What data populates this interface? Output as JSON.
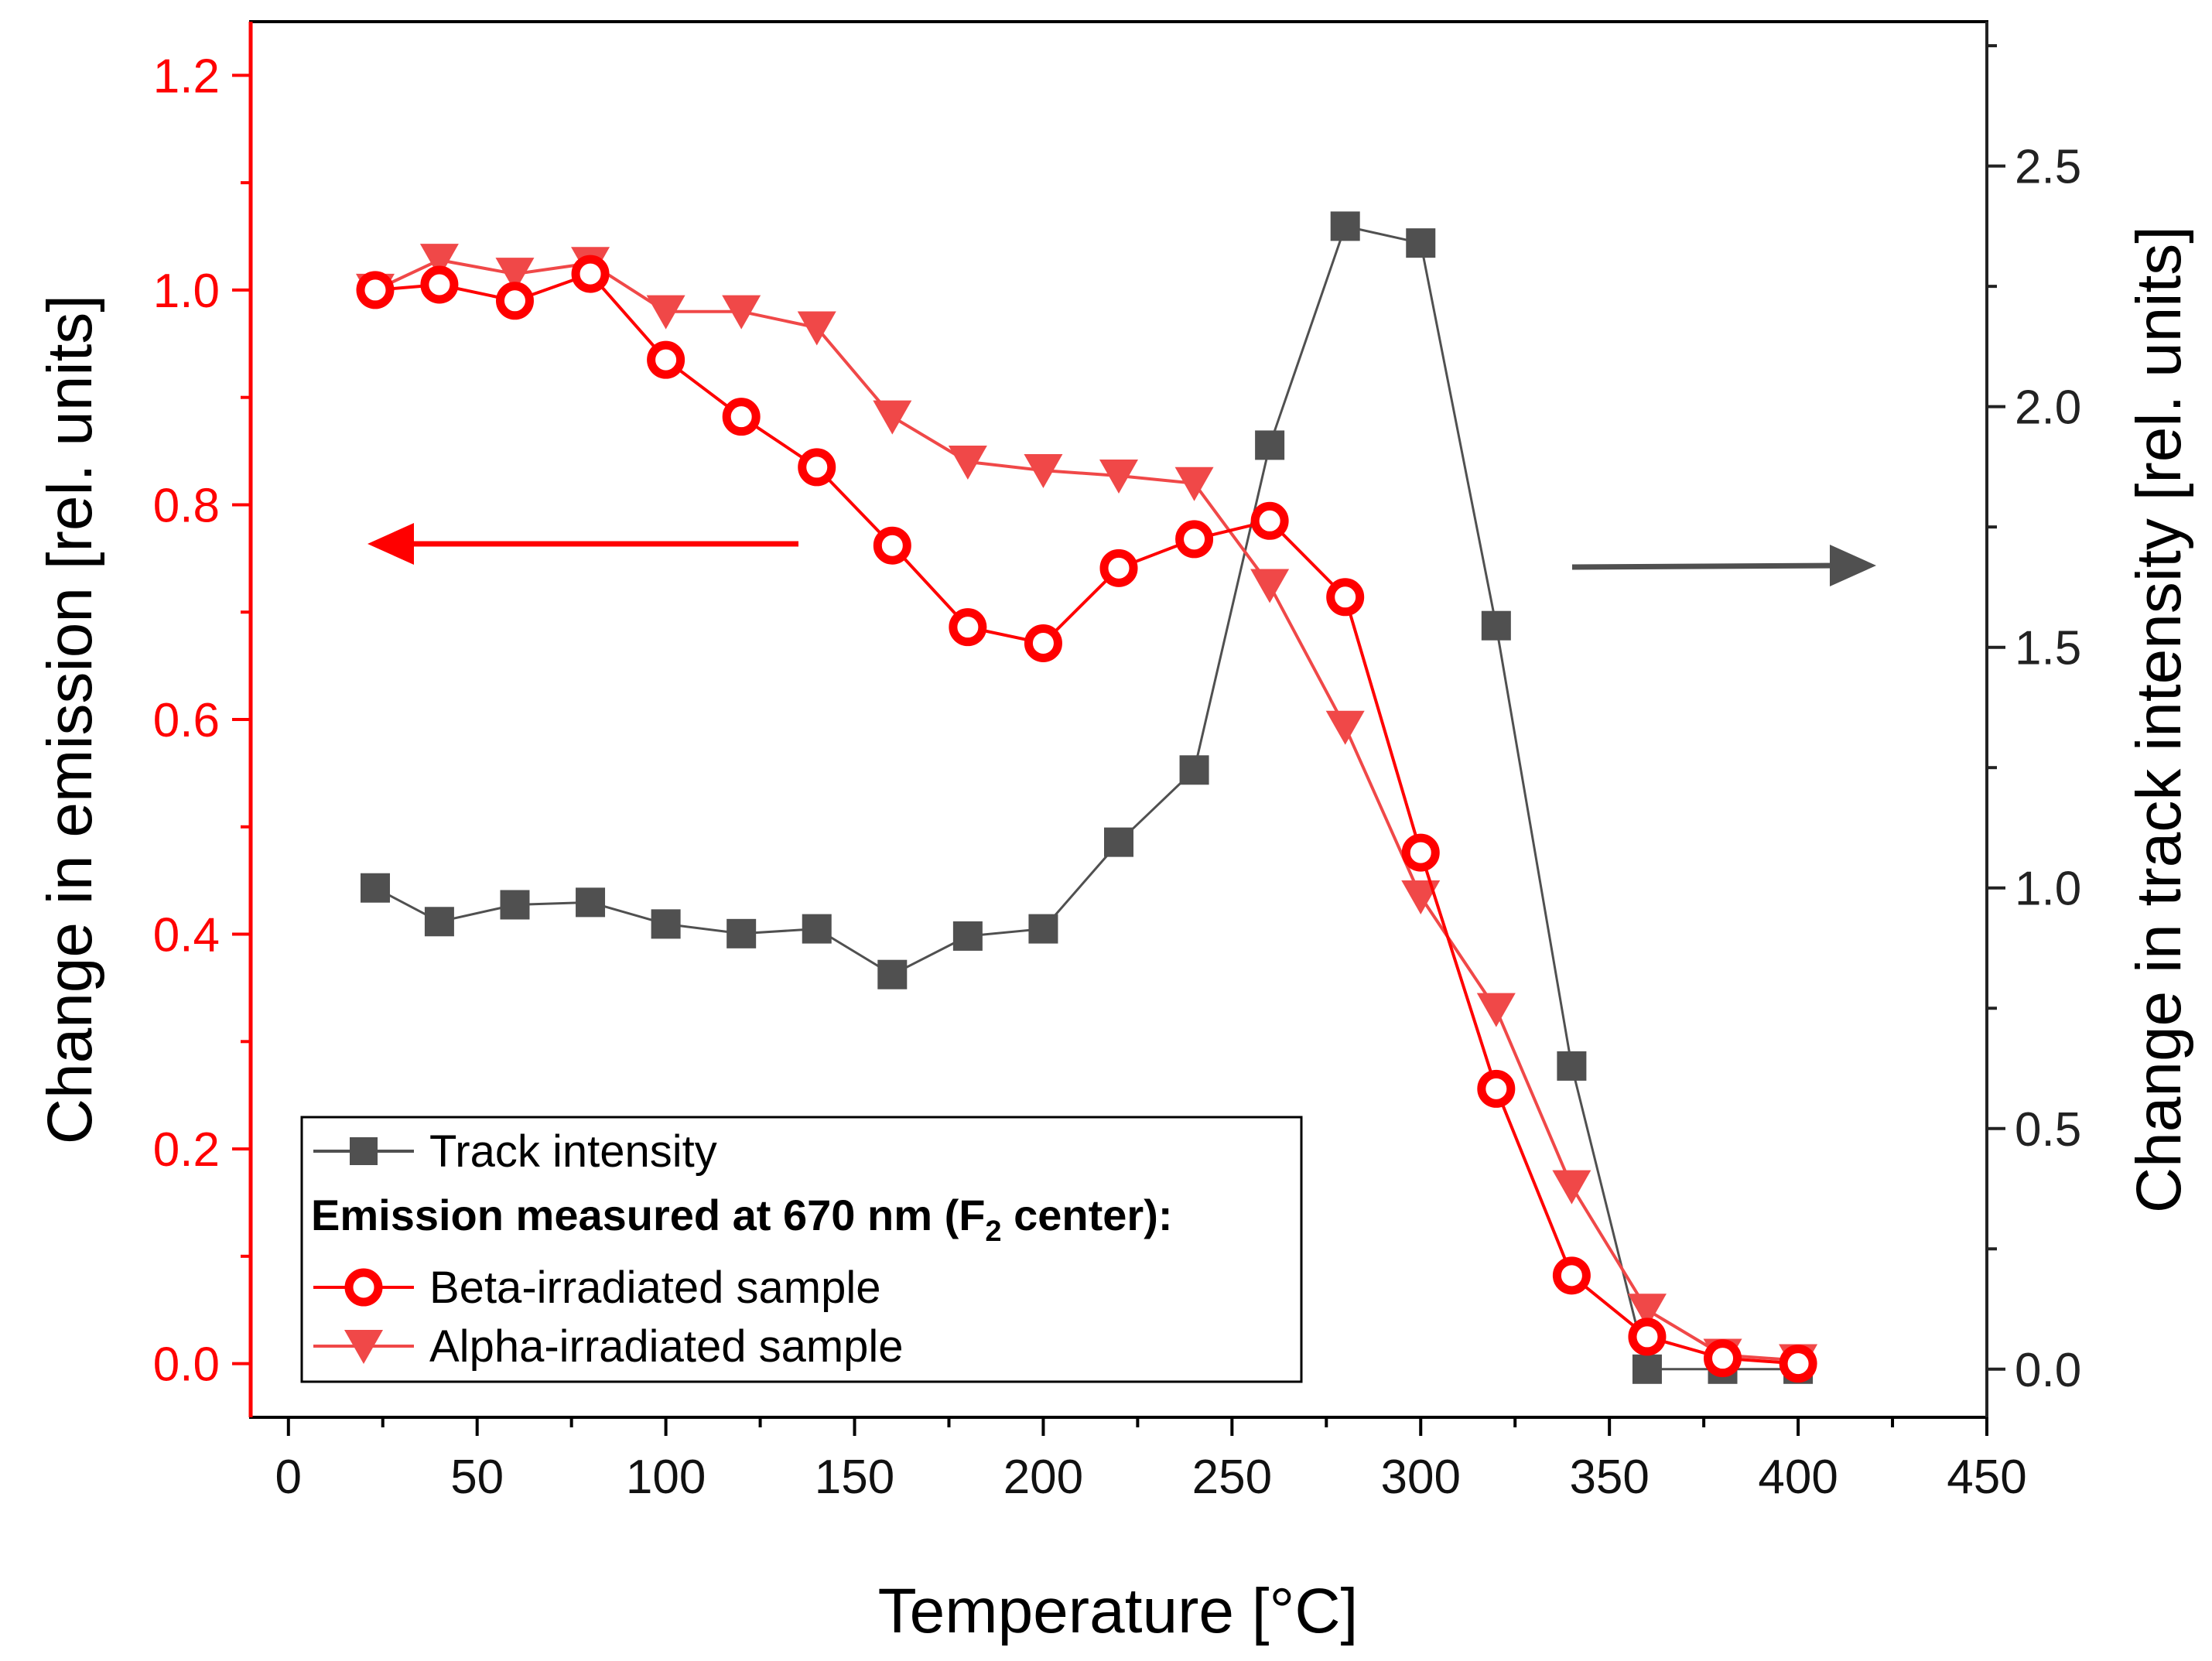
{
  "chart_data": {
    "type": "line",
    "xlabel": "Temperature [°C]",
    "ylabel_left": "Change in emission [rel. units]",
    "ylabel_right": "Change in track intensity [rel. units]",
    "xlim": [
      -10,
      450
    ],
    "ylim_left": [
      -0.05,
      1.25
    ],
    "ylim_right": [
      -0.1,
      2.8
    ],
    "x_ticks": [
      "0",
      "50",
      "100",
      "150",
      "200",
      "250",
      "300",
      "350",
      "400",
      "450"
    ],
    "y_left_ticks": [
      "0.0",
      "0.2",
      "0.4",
      "0.6",
      "0.8",
      "1.0",
      "1.2"
    ],
    "y_right_ticks": [
      "0.0",
      "0.5",
      "1.0",
      "1.5",
      "2.0",
      "2.5"
    ],
    "series": [
      {
        "name": "Track intensity",
        "axis": "right",
        "color": "#505050",
        "marker": "square",
        "x": [
          23,
          40,
          60,
          80,
          100,
          120,
          140,
          160,
          180,
          200,
          220,
          240,
          260,
          280,
          300,
          320,
          340,
          360,
          380,
          400
        ],
        "y": [
          1.0,
          0.93,
          0.965,
          0.97,
          0.925,
          0.905,
          0.915,
          0.82,
          0.9,
          0.915,
          1.095,
          1.245,
          1.92,
          2.375,
          2.34,
          1.545,
          0.63,
          0.0,
          0.0,
          0.0
        ]
      },
      {
        "name": "Beta-irradiated sample",
        "axis": "left",
        "color": "#ff0000",
        "marker": "circle-open",
        "x": [
          23,
          40,
          60,
          80,
          100,
          120,
          140,
          160,
          180,
          200,
          220,
          240,
          260,
          280,
          300,
          320,
          340,
          360,
          380,
          400
        ],
        "y": [
          1.0,
          1.005,
          0.99,
          1.015,
          0.935,
          0.882,
          0.835,
          0.762,
          0.686,
          0.671,
          0.741,
          0.768,
          0.785,
          0.714,
          0.476,
          0.256,
          0.082,
          0.025,
          0.005,
          0.0
        ]
      },
      {
        "name": "Alpha-irradiated sample",
        "axis": "left",
        "color": "#f04848",
        "marker": "triangle-down",
        "x": [
          23,
          40,
          60,
          80,
          100,
          120,
          140,
          160,
          180,
          200,
          220,
          240,
          260,
          280,
          300,
          320,
          340,
          360,
          380,
          400
        ],
        "y": [
          1.0,
          1.028,
          1.015,
          1.025,
          0.98,
          0.98,
          0.965,
          0.882,
          0.84,
          0.832,
          0.827,
          0.82,
          0.725,
          0.593,
          0.435,
          0.33,
          0.165,
          0.05,
          0.008,
          0.003
        ]
      }
    ],
    "legend": {
      "position": "bottom-left",
      "heading_main": "Emission measured at 670 nm (F",
      "heading_sub": "2",
      "heading_end": " center):"
    },
    "annotations": [
      {
        "type": "arrow",
        "direction": "left",
        "meaning": "left axis",
        "color": "#ff0000"
      },
      {
        "type": "arrow",
        "direction": "right",
        "meaning": "right axis",
        "color": "#505050"
      }
    ]
  }
}
